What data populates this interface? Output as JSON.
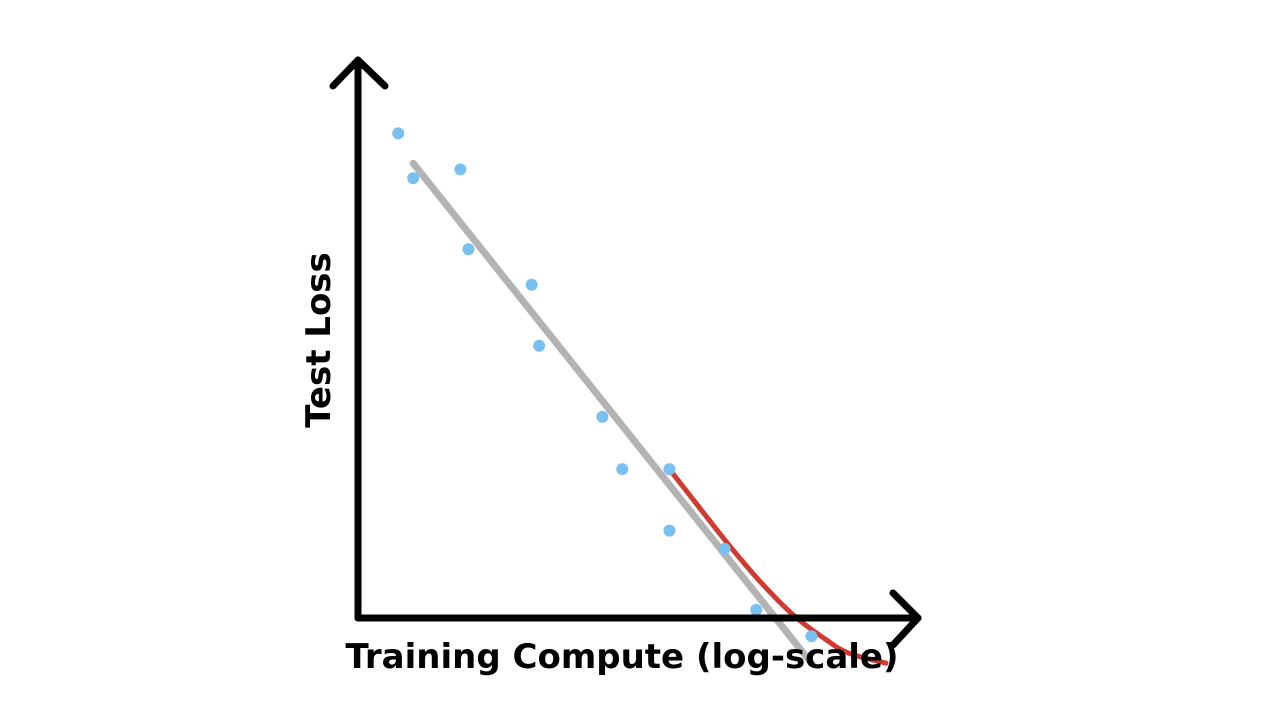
{
  "chart_data": {
    "type": "scatter",
    "xlabel": "Training Compute (log-scale)",
    "ylabel": "Test Loss",
    "xlim": [
      0,
      100
    ],
    "ylim": [
      0,
      100
    ],
    "grid": false,
    "legend": "none",
    "axis_ticks": false,
    "colors": {
      "points": "#79c0f2",
      "trend_line": "#b3b3b3",
      "curve": "#d03a2f",
      "axes": "#000000"
    },
    "points": [
      {
        "x": 7.5,
        "y": 95.4
      },
      {
        "x": 10.3,
        "y": 86.6
      },
      {
        "x": 19.1,
        "y": 88.3
      },
      {
        "x": 20.6,
        "y": 72.6
      },
      {
        "x": 32.4,
        "y": 65.6
      },
      {
        "x": 33.8,
        "y": 53.6
      },
      {
        "x": 45.6,
        "y": 39.6
      },
      {
        "x": 49.3,
        "y": 29.3
      },
      {
        "x": 58.1,
        "y": 29.3
      },
      {
        "x": 58.1,
        "y": 17.2
      },
      {
        "x": 68.4,
        "y": 13.6
      },
      {
        "x": 74.3,
        "y": 1.6
      },
      {
        "x": 84.6,
        "y": -3.6
      }
    ],
    "trend_line": [
      {
        "x": 10.3,
        "y": 89.5
      },
      {
        "x": 84.6,
        "y": -8.9
      }
    ],
    "curve": [
      {
        "x": 58.1,
        "y": 29.3
      },
      {
        "x": 63.2,
        "y": 22.4
      },
      {
        "x": 69.1,
        "y": 14.5
      },
      {
        "x": 75.0,
        "y": 7.2
      },
      {
        "x": 81.2,
        "y": 0.6
      },
      {
        "x": 87.1,
        "y": -4.1
      },
      {
        "x": 91.5,
        "y": -6.9
      },
      {
        "x": 98.5,
        "y": -8.9
      }
    ]
  }
}
